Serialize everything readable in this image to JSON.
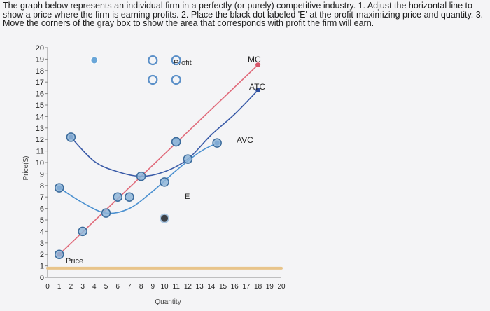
{
  "instructions": "The graph below represents an individual firm in a perfectly (or purely) competitive industry. 1. Adjust the horizontal line to show a price where the firm is earning profits. 2. Place the black dot labeled 'E' at the profit-maximizing price and quantity. 3. Move the corners of the gray box to show the area that corresponds with profit the firm will earn.",
  "chart_data": {
    "type": "line",
    "xlabel": "Quantity",
    "ylabel": "Price($)",
    "xlim": [
      0,
      20
    ],
    "ylim": [
      0,
      20
    ],
    "x_ticks": [
      "0",
      "1",
      "2",
      "3",
      "4",
      "5",
      "6",
      "7",
      "8",
      "9",
      "10",
      "11",
      "12",
      "13",
      "14",
      "15",
      "16",
      "17",
      "18",
      "19",
      "20"
    ],
    "y_ticks": [
      "0",
      "1",
      "2",
      "3",
      "4",
      "5",
      "6",
      "7",
      "8",
      "9",
      "10",
      "11",
      "12",
      "13",
      "14",
      "15",
      "16",
      "17",
      "18",
      "19",
      "20"
    ],
    "series": [
      {
        "name": "MC",
        "color": "#e06a7a",
        "points": [
          [
            1,
            2
          ],
          [
            18,
            18.5
          ]
        ],
        "handles": [
          [
            1,
            2
          ],
          [
            3,
            4
          ],
          [
            6,
            7
          ],
          [
            8,
            8.8
          ],
          [
            11,
            11.8
          ]
        ]
      },
      {
        "name": "ATC",
        "color": "#3a5ba8",
        "points": [
          [
            2,
            12.2
          ],
          [
            4,
            10.1
          ],
          [
            6,
            9.2
          ],
          [
            8,
            8.8
          ],
          [
            10,
            9.2
          ],
          [
            12,
            10.3
          ],
          [
            14,
            12.4
          ],
          [
            16,
            14.2
          ],
          [
            18,
            16.3
          ]
        ],
        "handles": [
          [
            2,
            12.2
          ],
          [
            11,
            11.8
          ]
        ]
      },
      {
        "name": "AVC",
        "color": "#4a90d0",
        "points": [
          [
            1,
            7.8
          ],
          [
            3,
            6.5
          ],
          [
            5,
            5.6
          ],
          [
            7,
            6
          ],
          [
            9,
            7.5
          ],
          [
            11,
            9.3
          ],
          [
            13,
            10.9
          ],
          [
            14.5,
            11.7
          ]
        ],
        "handles": [
          [
            1,
            7.8
          ],
          [
            5,
            5.6
          ],
          [
            7,
            7
          ],
          [
            10,
            8.3
          ],
          [
            12,
            10.3
          ],
          [
            14.5,
            11.7
          ]
        ]
      },
      {
        "name": "Price",
        "color": "#e8c48a",
        "points": [
          [
            0,
            0.8
          ],
          [
            20,
            0.8
          ]
        ]
      }
    ],
    "point_E": {
      "label": "E",
      "x": 10,
      "y": 5.5
    },
    "loose_point": {
      "x": 4,
      "y": 18.9
    },
    "profit_box": {
      "label": "Profit",
      "x": [
        9,
        11
      ],
      "y": [
        17.2,
        18.9
      ]
    }
  },
  "labels": {
    "mc": "MC",
    "atc": "ATC",
    "avc": "AVC",
    "price": "Price",
    "profit": "Profit",
    "e": "E"
  }
}
